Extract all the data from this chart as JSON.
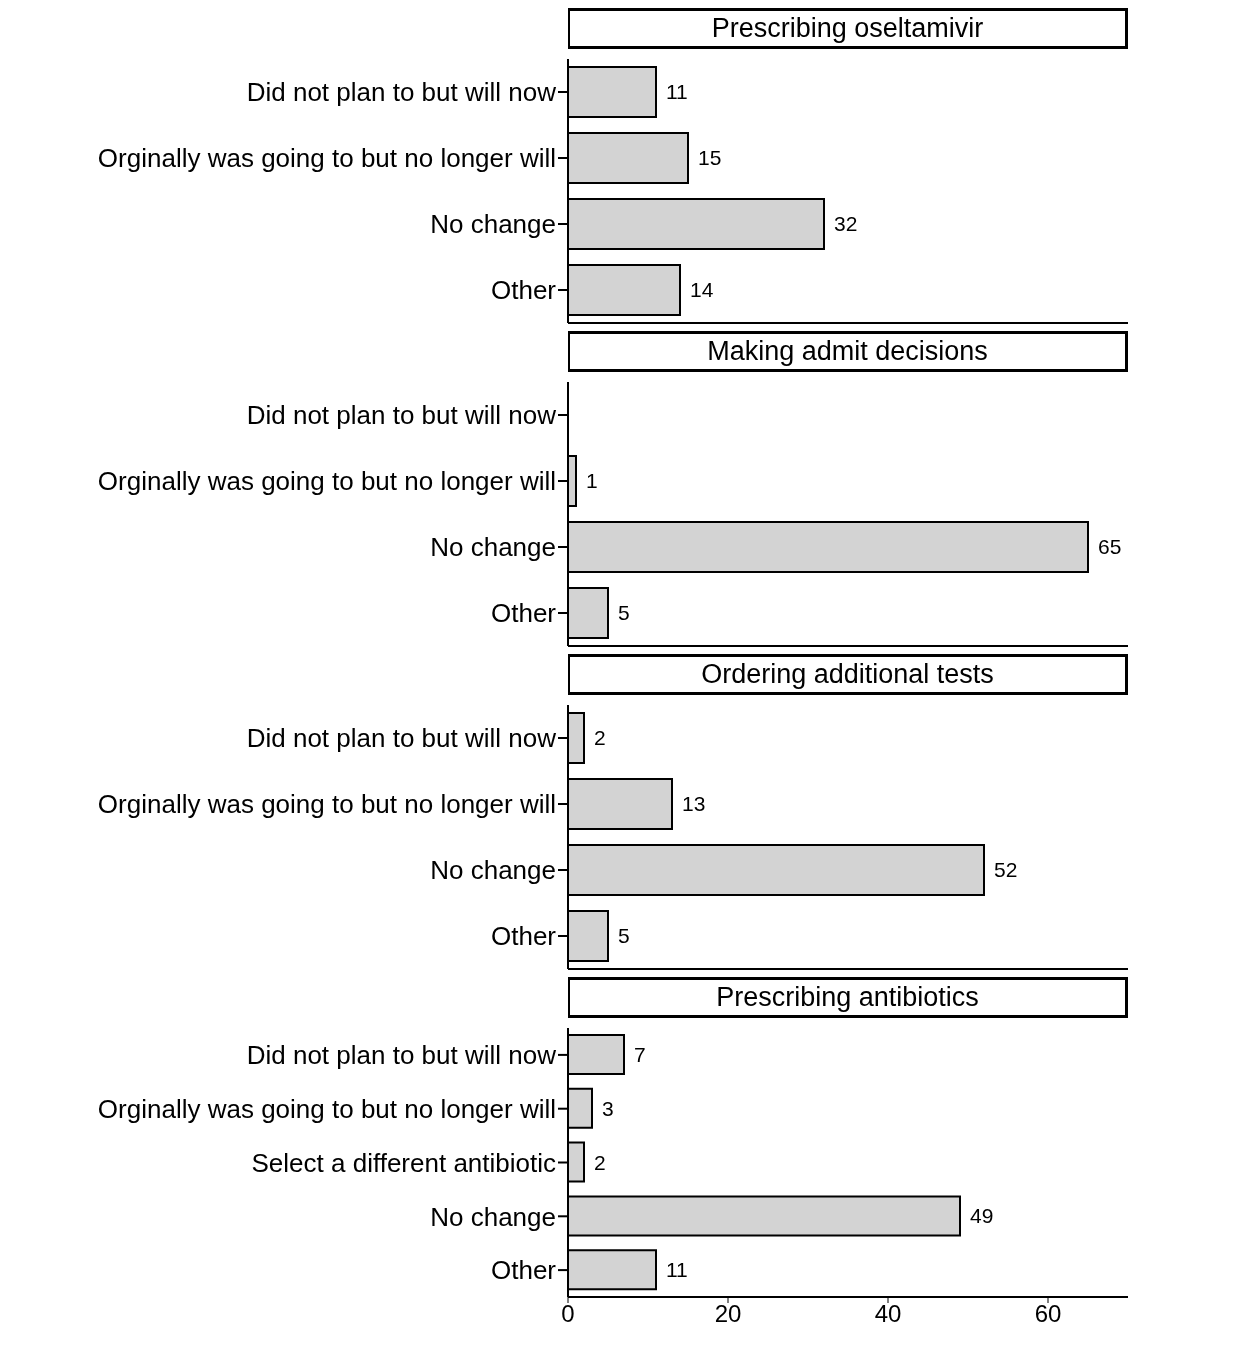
{
  "chart_data": [
    {
      "type": "bar",
      "orientation": "horizontal",
      "title": "Prescribing oseltamivir",
      "categories": [
        "Did not plan to but will now",
        "Orginally was going to but no longer will",
        "No change",
        "Other"
      ],
      "values": [
        11,
        15,
        32,
        14
      ],
      "color": "#d3d3d3",
      "data_labels": true,
      "xlim": [
        0,
        70
      ],
      "xticks": [
        0,
        20,
        40,
        60
      ],
      "tick_labels": "y",
      "grid": false
    },
    {
      "type": "bar",
      "orientation": "horizontal",
      "title": "Making admit decisions",
      "categories": [
        "Did not plan to but will now",
        "Orginally was going to but no longer will",
        "No change",
        "Other"
      ],
      "values": [
        null,
        1,
        65,
        5
      ],
      "color": "#d3d3d3",
      "data_labels": true,
      "xlim": [
        0,
        70
      ],
      "xticks": [
        0,
        20,
        40,
        60
      ],
      "tick_labels": "y",
      "grid": false
    },
    {
      "type": "bar",
      "orientation": "horizontal",
      "title": "Ordering additional tests",
      "categories": [
        "Did not plan to but will now",
        "Orginally was going to but no longer will",
        "No change",
        "Other"
      ],
      "values": [
        2,
        13,
        52,
        5
      ],
      "color": "#d3d3d3",
      "data_labels": true,
      "xlim": [
        0,
        70
      ],
      "xticks": [
        0,
        20,
        40,
        60
      ],
      "tick_labels": "y",
      "grid": false
    },
    {
      "type": "bar",
      "orientation": "horizontal",
      "title": "Prescribing antibiotics",
      "categories": [
        "Did not plan to but will now",
        "Orginally was going to but no longer will",
        "Select a different antibiotic",
        "No change",
        "Other"
      ],
      "values": [
        7,
        3,
        2,
        49,
        11
      ],
      "color": "#d3d3d3",
      "data_labels": true,
      "xlim": [
        0,
        70
      ],
      "xticks": [
        0,
        20,
        40,
        60
      ],
      "grid": false
    }
  ]
}
